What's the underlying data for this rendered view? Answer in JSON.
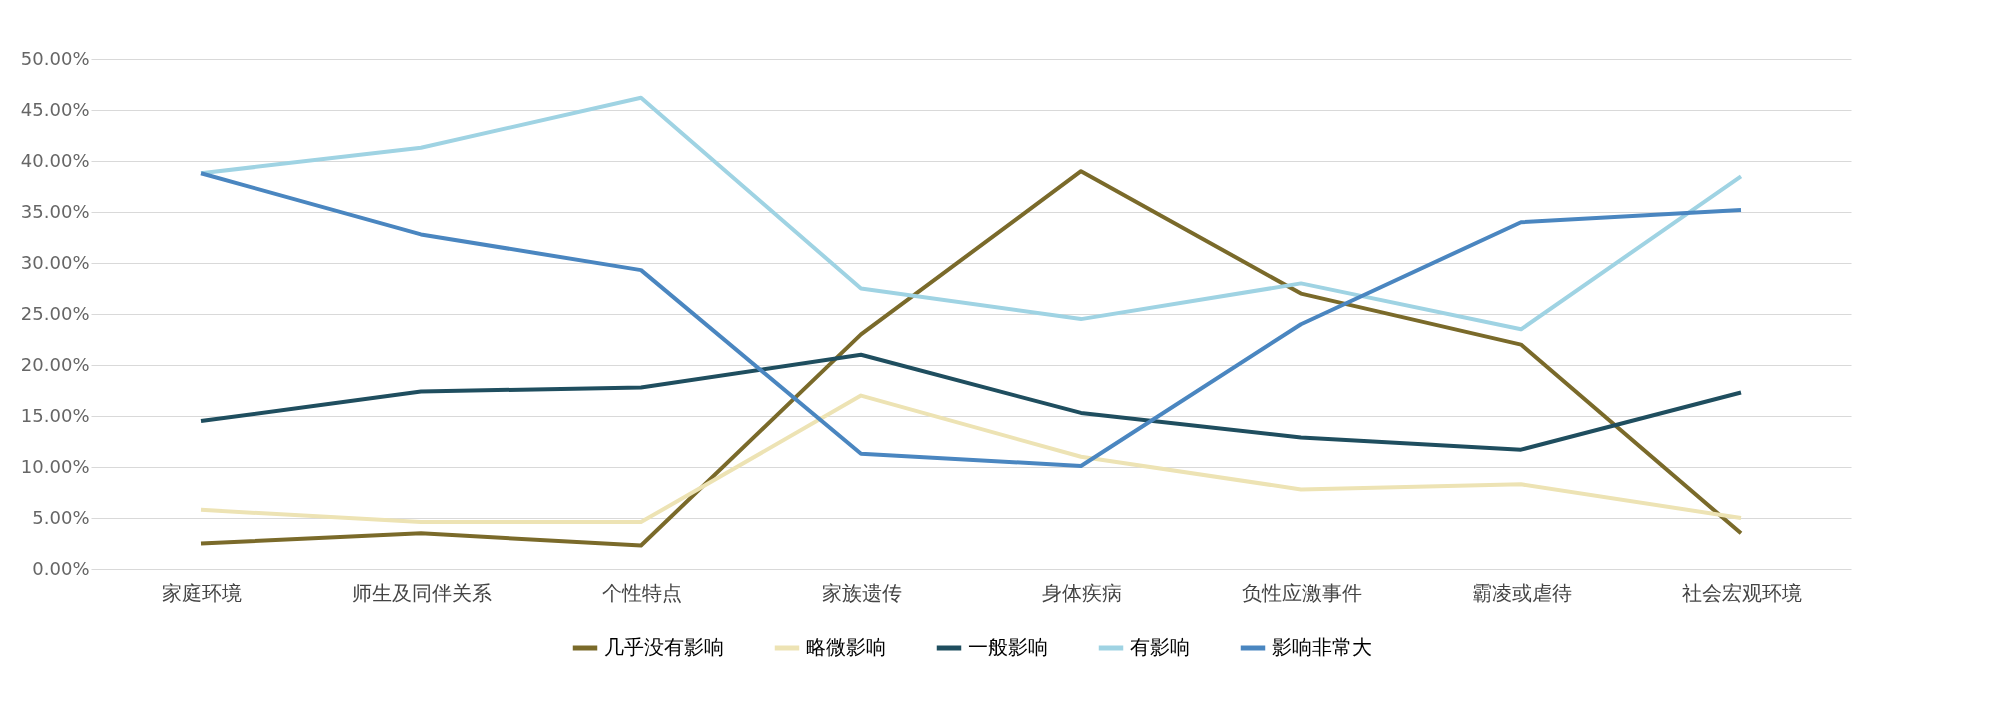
{
  "chart_data": {
    "type": "line",
    "categories": [
      "家庭环境",
      "师生及同伴关系",
      "个性特点",
      "家族遗传",
      "身体疾病",
      "负性应激事件",
      "霸凌或虐待",
      "社会宏观环境"
    ],
    "series": [
      {
        "name": "几乎没有影响",
        "color": "#7a6a2a",
        "values": [
          2.5,
          3.5,
          2.3,
          23,
          39,
          27,
          22,
          3.5
        ]
      },
      {
        "name": "略微影响",
        "color": "#ede3b4",
        "values": [
          5.8,
          4.6,
          4.6,
          17,
          11,
          7.8,
          8.3,
          5
        ]
      },
      {
        "name": "一般影响",
        "color": "#1f4e5f",
        "values": [
          14.5,
          17.4,
          17.8,
          21,
          15.3,
          12.9,
          11.7,
          17.3
        ]
      },
      {
        "name": "有影响",
        "color": "#9fd3e3",
        "values": [
          38.8,
          41.3,
          46.2,
          27.5,
          24.5,
          28,
          23.5,
          38.5
        ]
      },
      {
        "name": "影响非常大",
        "color": "#4a86c0",
        "values": [
          38.8,
          32.8,
          29.3,
          11.3,
          10.1,
          24,
          34,
          35.2
        ]
      }
    ],
    "ylim": [
      0,
      50
    ],
    "yticks": [
      {
        "value": 0,
        "label": "0.00%"
      },
      {
        "value": 5,
        "label": "5.00%"
      },
      {
        "value": 10,
        "label": "10.00%"
      },
      {
        "value": 15,
        "label": "15.00%"
      },
      {
        "value": 20,
        "label": "20.00%"
      },
      {
        "value": 25,
        "label": "25.00%"
      },
      {
        "value": 30,
        "label": "30.00%"
      },
      {
        "value": 35,
        "label": "35.00%"
      },
      {
        "value": 40,
        "label": "40.00%"
      },
      {
        "value": 45,
        "label": "45.00%"
      },
      {
        "value": 50,
        "label": "50.00%"
      }
    ],
    "grid": "y",
    "legend": "bottom",
    "marker": "none",
    "line_style": "solid"
  }
}
